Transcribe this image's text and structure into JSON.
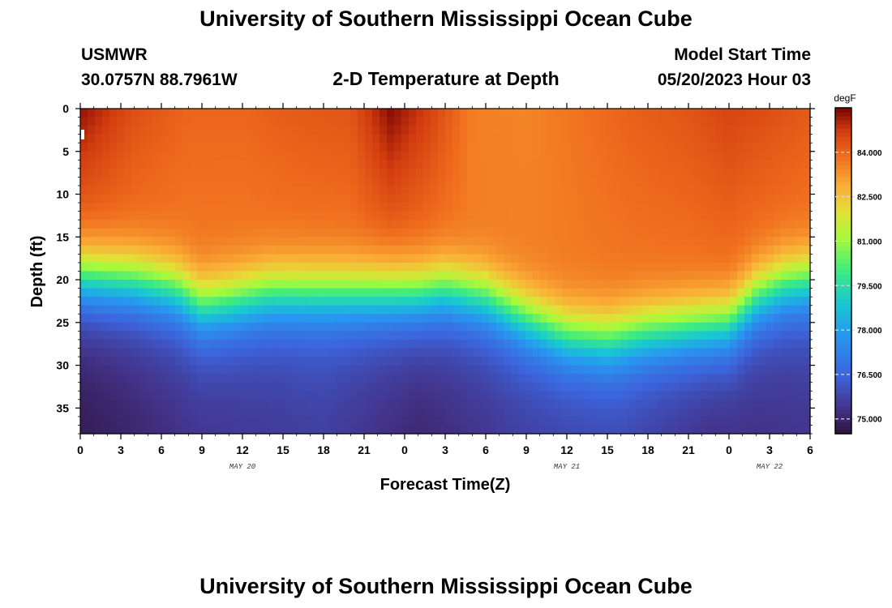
{
  "page": {
    "title": "University of Southern Mississippi Ocean Cube",
    "footer_title": "University of Southern Mississippi Ocean Cube",
    "station": "USMWR",
    "coordinates": "30.0757N  88.7961W",
    "plot_title": "2-D Temperature at Depth",
    "model_start_label": "Model Start Time",
    "model_start_value": "05/20/2023 Hour 03"
  },
  "chart_data": {
    "type": "heatmap",
    "title": "2-D Temperature at Depth",
    "xlabel": "Forecast Time(Z)",
    "ylabel": "Depth (ft)",
    "x_range_hours": [
      0,
      54
    ],
    "y_range_ft": [
      0,
      38
    ],
    "x_tick_labels": [
      "0",
      "3",
      "6",
      "9",
      "12",
      "15",
      "18",
      "21",
      "0",
      "3",
      "6",
      "9",
      "12",
      "15",
      "18",
      "21",
      "0",
      "3",
      "6"
    ],
    "y_tick_labels": [
      "0",
      "5",
      "10",
      "15",
      "20",
      "25",
      "30",
      "35"
    ],
    "date_labels": [
      {
        "text": "MAY 20",
        "hour": 12
      },
      {
        "text": "MAY 21",
        "hour": 36
      },
      {
        "text": "MAY 22",
        "hour": 51
      }
    ],
    "colorbar": {
      "unit": "degF",
      "range": [
        74.5,
        85.5
      ],
      "tick_labels": [
        "75.000",
        "76.500",
        "78.000",
        "79.500",
        "81.000",
        "82.500",
        "84.000"
      ],
      "tick_values": [
        75.0,
        76.5,
        78.0,
        79.5,
        81.0,
        82.5,
        84.0
      ]
    },
    "thermocline_depth_ft": [
      {
        "hour": 0,
        "depth": 16.5
      },
      {
        "hour": 4,
        "depth": 17
      },
      {
        "hour": 7,
        "depth": 18
      },
      {
        "hour": 9,
        "depth": 20
      },
      {
        "hour": 11,
        "depth": 19.5
      },
      {
        "hour": 14,
        "depth": 18.5
      },
      {
        "hour": 18,
        "depth": 18.5
      },
      {
        "hour": 22,
        "depth": 18.5
      },
      {
        "hour": 25,
        "depth": 18.5
      },
      {
        "hour": 27,
        "depth": 18
      },
      {
        "hour": 30,
        "depth": 19
      },
      {
        "hour": 33,
        "depth": 21.5
      },
      {
        "hour": 36,
        "depth": 23.5
      },
      {
        "hour": 39,
        "depth": 24
      },
      {
        "hour": 42,
        "depth": 23
      },
      {
        "hour": 45,
        "depth": 22.5
      },
      {
        "hour": 48,
        "depth": 22
      },
      {
        "hour": 50,
        "depth": 19
      },
      {
        "hour": 52,
        "depth": 17.5
      },
      {
        "hour": 54,
        "depth": 17
      }
    ],
    "surface_temp_degF": [
      {
        "hour": 0,
        "temp": 85.3
      },
      {
        "hour": 4,
        "temp": 84.4
      },
      {
        "hour": 8,
        "temp": 84.0
      },
      {
        "hour": 12,
        "temp": 84.0
      },
      {
        "hour": 16,
        "temp": 84.2
      },
      {
        "hour": 20,
        "temp": 84.3
      },
      {
        "hour": 23,
        "temp": 85.4
      },
      {
        "hour": 26,
        "temp": 84.6
      },
      {
        "hour": 29,
        "temp": 83.6
      },
      {
        "hour": 33,
        "temp": 83.5
      },
      {
        "hour": 37,
        "temp": 83.8
      },
      {
        "hour": 41,
        "temp": 84.1
      },
      {
        "hour": 45,
        "temp": 84.3
      },
      {
        "hour": 48,
        "temp": 84.6
      },
      {
        "hour": 51,
        "temp": 84.4
      },
      {
        "hour": 54,
        "temp": 84.2
      }
    ],
    "bottom_temp_degF": [
      {
        "hour": 0,
        "temp": 74.6
      },
      {
        "hour": 8,
        "temp": 75.2
      },
      {
        "hour": 18,
        "temp": 75.5
      },
      {
        "hour": 25,
        "temp": 74.9
      },
      {
        "hour": 32,
        "temp": 75.4
      },
      {
        "hour": 40,
        "temp": 75.6
      },
      {
        "hour": 47,
        "temp": 75.0
      },
      {
        "hour": 54,
        "temp": 75.3
      }
    ]
  }
}
